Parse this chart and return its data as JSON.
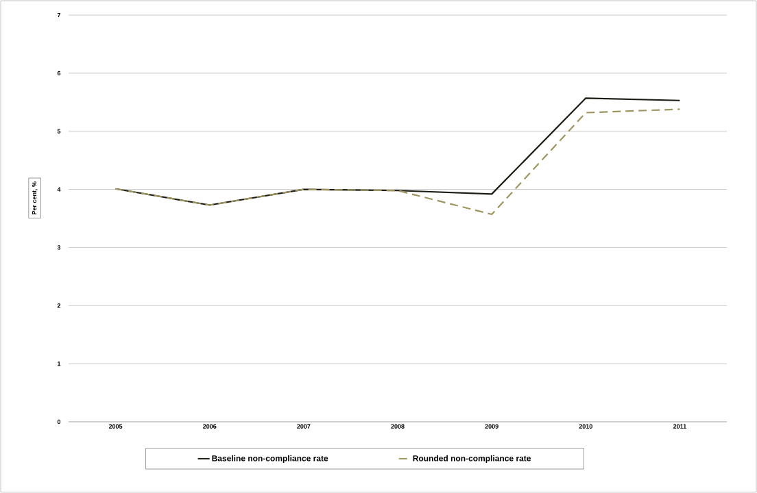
{
  "chart_data": {
    "type": "line",
    "ylabel": "Per cent, %",
    "categories": [
      "2005",
      "2006",
      "2007",
      "2008",
      "2009",
      "2010",
      "2011"
    ],
    "series": [
      {
        "name": "Baseline non-compliance rate",
        "color": "#1c1c14",
        "line_style": "solid",
        "values": [
          4.01,
          3.73,
          4.0,
          3.98,
          3.92,
          5.57,
          5.53
        ]
      },
      {
        "name": "Rounded non-compliance rate",
        "color": "#9e9561",
        "line_style": "dashed",
        "values": [
          4.01,
          3.73,
          4.0,
          3.98,
          3.57,
          5.32,
          5.38
        ]
      }
    ],
    "ylim": [
      0,
      7
    ],
    "yticks": [
      0,
      1,
      2,
      3,
      4,
      5,
      6,
      7
    ],
    "grid": "y",
    "legend": "bottom"
  }
}
